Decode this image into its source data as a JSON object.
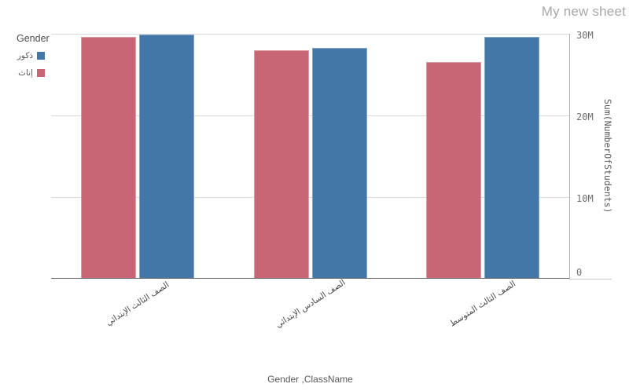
{
  "title": "My new sheet",
  "legend": {
    "title": "Gender",
    "items": [
      {
        "label": "ذكور",
        "color": "#4377a7"
      },
      {
        "label": "إناث",
        "color": "#c96676"
      }
    ]
  },
  "chart_data": {
    "type": "bar",
    "title": "",
    "categories": [
      "الصف الثالث الإبتدائي",
      "الصف السادس الإبتدائي",
      "الصف الثالث المتوسط"
    ],
    "series": [
      {
        "name": "إناث",
        "color": "#c96676",
        "values": [
          29650000,
          28000000,
          26500000
        ]
      },
      {
        "name": "ذكور",
        "color": "#4377a7",
        "values": [
          29900000,
          28300000,
          29600000
        ]
      }
    ],
    "xlabel": "Gender ,ClassName",
    "ylabel": "Sum(NumberOfStudents)",
    "ylim": [
      0,
      30000000
    ],
    "yticks": [
      {
        "value": 0,
        "label": "0"
      },
      {
        "value": 10000000,
        "label": "10M"
      },
      {
        "value": 20000000,
        "label": "20M"
      },
      {
        "value": 30000000,
        "label": "30M"
      }
    ],
    "grid": true,
    "legend_position": "top-left",
    "y_axis_side": "right",
    "colors": {
      "male_blue": "#4377a7",
      "female_rose": "#c96676"
    }
  }
}
